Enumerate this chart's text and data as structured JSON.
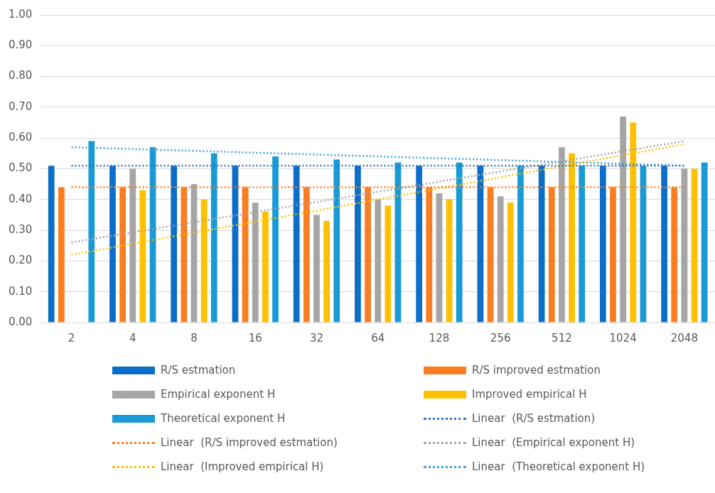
{
  "chart_data": {
    "type": "bar",
    "categories": [
      "2",
      "4",
      "8",
      "16",
      "32",
      "64",
      "128",
      "256",
      "512",
      "1024",
      "2048"
    ],
    "series": [
      {
        "name": "R/S estmation",
        "color": "#0b6fca",
        "values": [
          0.51,
          0.51,
          0.51,
          0.51,
          0.51,
          0.51,
          0.51,
          0.51,
          0.51,
          0.51,
          0.51
        ]
      },
      {
        "name": "R/S improved estmation",
        "color": "#fb7d21",
        "values": [
          0.44,
          0.44,
          0.44,
          0.44,
          0.44,
          0.44,
          0.44,
          0.44,
          0.44,
          0.44,
          0.44
        ]
      },
      {
        "name": "Empirical exponent H",
        "color": "#a5a5a5",
        "values": [
          null,
          0.5,
          0.45,
          0.39,
          0.35,
          0.4,
          0.42,
          0.41,
          0.57,
          0.67,
          0.5
        ]
      },
      {
        "name": "Improved empirical H",
        "color": "#ffc000",
        "values": [
          null,
          0.43,
          0.4,
          0.36,
          0.33,
          0.38,
          0.4,
          0.39,
          0.55,
          0.65,
          0.5
        ]
      },
      {
        "name": "Theoretical exponent H",
        "color": "#189ad6",
        "values": [
          0.59,
          0.57,
          0.55,
          0.54,
          0.53,
          0.52,
          0.52,
          0.51,
          0.51,
          0.51,
          0.52
        ]
      },
      {
        "name": "Linear  (R/S estmation)",
        "type": "line",
        "line_style": "dotted",
        "color": "#2f74c8",
        "values": [
          0.51,
          null,
          null,
          null,
          null,
          null,
          null,
          null,
          null,
          null,
          0.51
        ]
      },
      {
        "name": "Linear  (R/S improved estmation)",
        "type": "line",
        "line_style": "dotted",
        "color": "#fb7d21",
        "values": [
          0.44,
          null,
          null,
          null,
          null,
          null,
          null,
          null,
          null,
          null,
          0.44
        ]
      },
      {
        "name": "Linear  (Empirical exponent H)",
        "type": "line",
        "line_style": "dotted",
        "color": "#a5a5a5",
        "values": [
          0.26,
          null,
          null,
          null,
          null,
          null,
          null,
          null,
          null,
          null,
          0.59
        ]
      },
      {
        "name": "Linear  (Improved empirical H)",
        "type": "line",
        "line_style": "dotted",
        "color": "#ffc000",
        "values": [
          0.22,
          null,
          null,
          null,
          null,
          null,
          null,
          null,
          null,
          null,
          0.58
        ]
      },
      {
        "name": "Linear  (Theoretical exponent H)",
        "type": "line",
        "line_style": "dotted",
        "color": "#3b9fe0",
        "values": [
          0.57,
          null,
          null,
          null,
          null,
          null,
          null,
          null,
          null,
          null,
          0.51
        ]
      }
    ],
    "ylim": [
      0,
      1
    ],
    "yticks": [
      {
        "value": 0,
        "label": "0.00"
      },
      {
        "value": 0.1,
        "label": "0.10"
      },
      {
        "value": 0.2,
        "label": "0.20"
      },
      {
        "value": 0.3,
        "label": "0.30"
      },
      {
        "value": 0.4,
        "label": "0.40"
      },
      {
        "value": 0.5,
        "label": "0.50"
      },
      {
        "value": 0.6,
        "label": "0.60"
      },
      {
        "value": 0.7,
        "label": "0.70"
      },
      {
        "value": 0.8,
        "label": "0.80"
      },
      {
        "value": 0.9,
        "label": "0.90"
      },
      {
        "value": 1,
        "label": "1.00"
      }
    ],
    "grid": "y",
    "legend": "bottom",
    "marker": "none"
  }
}
